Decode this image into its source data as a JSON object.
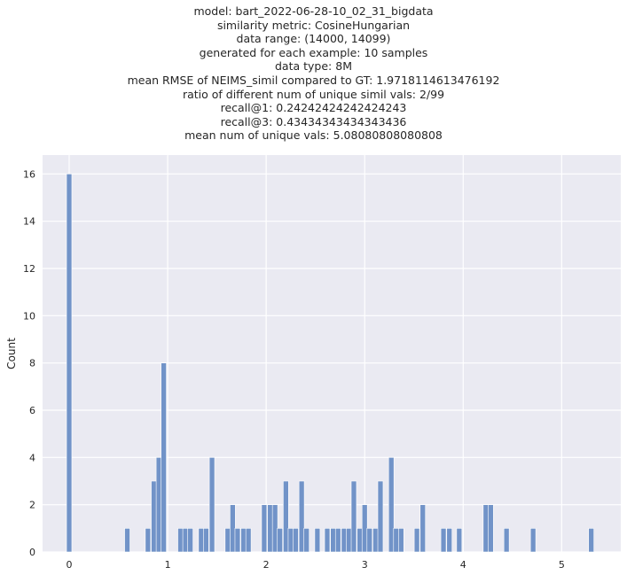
{
  "chart_data": {
    "type": "bar",
    "title_lines": [
      "model: bart_2022-06-28-10_02_31_bigdata",
      "similarity metric: CosineHungarian",
      "data range: (14000, 14099)",
      "generated for each example: 10 samples",
      "data type: 8M",
      "mean RMSE of NEIMS_simil compared to GT: 1.9718114613476192",
      "ratio of different num of unique simil vals: 2/99",
      "recall@1: 0.24242424242424243",
      "recall@3: 0.43434343434343436",
      "mean num of unique vals: 5.08080808080808"
    ],
    "xlabel": "",
    "ylabel": "Count",
    "xlim": [
      -0.27,
      5.6
    ],
    "ylim": [
      0,
      16.8
    ],
    "xticks": [
      0,
      1,
      2,
      3,
      4,
      5
    ],
    "yticks": [
      0,
      2,
      4,
      6,
      8,
      10,
      12,
      14,
      16
    ],
    "grid": true,
    "bar_color": "#7193c8",
    "background_color": "#eaeaf2",
    "bin_width": 0.0535,
    "bins": [
      {
        "x": 0.0,
        "count": 16
      },
      {
        "x": 0.59,
        "count": 1
      },
      {
        "x": 0.8,
        "count": 1
      },
      {
        "x": 0.86,
        "count": 3
      },
      {
        "x": 0.91,
        "count": 4
      },
      {
        "x": 0.96,
        "count": 8
      },
      {
        "x": 1.13,
        "count": 1
      },
      {
        "x": 1.18,
        "count": 1
      },
      {
        "x": 1.23,
        "count": 1
      },
      {
        "x": 1.34,
        "count": 1
      },
      {
        "x": 1.39,
        "count": 1
      },
      {
        "x": 1.45,
        "count": 4
      },
      {
        "x": 1.61,
        "count": 1
      },
      {
        "x": 1.66,
        "count": 2
      },
      {
        "x": 1.71,
        "count": 1
      },
      {
        "x": 1.77,
        "count": 1
      },
      {
        "x": 1.82,
        "count": 1
      },
      {
        "x": 1.98,
        "count": 2
      },
      {
        "x": 2.04,
        "count": 2
      },
      {
        "x": 2.09,
        "count": 2
      },
      {
        "x": 2.14,
        "count": 1
      },
      {
        "x": 2.2,
        "count": 3
      },
      {
        "x": 2.25,
        "count": 1
      },
      {
        "x": 2.3,
        "count": 1
      },
      {
        "x": 2.36,
        "count": 3
      },
      {
        "x": 2.41,
        "count": 1
      },
      {
        "x": 2.52,
        "count": 1
      },
      {
        "x": 2.62,
        "count": 1
      },
      {
        "x": 2.68,
        "count": 1
      },
      {
        "x": 2.73,
        "count": 1
      },
      {
        "x": 2.79,
        "count": 1
      },
      {
        "x": 2.84,
        "count": 1
      },
      {
        "x": 2.89,
        "count": 3
      },
      {
        "x": 2.95,
        "count": 1
      },
      {
        "x": 3.0,
        "count": 2
      },
      {
        "x": 3.05,
        "count": 1
      },
      {
        "x": 3.11,
        "count": 1
      },
      {
        "x": 3.16,
        "count": 3
      },
      {
        "x": 3.27,
        "count": 4
      },
      {
        "x": 3.32,
        "count": 1
      },
      {
        "x": 3.37,
        "count": 1
      },
      {
        "x": 3.53,
        "count": 1
      },
      {
        "x": 3.59,
        "count": 2
      },
      {
        "x": 3.8,
        "count": 1
      },
      {
        "x": 3.86,
        "count": 1
      },
      {
        "x": 3.96,
        "count": 1
      },
      {
        "x": 4.23,
        "count": 2
      },
      {
        "x": 4.28,
        "count": 2
      },
      {
        "x": 4.44,
        "count": 1
      },
      {
        "x": 4.71,
        "count": 1
      },
      {
        "x": 5.3,
        "count": 1
      }
    ]
  }
}
